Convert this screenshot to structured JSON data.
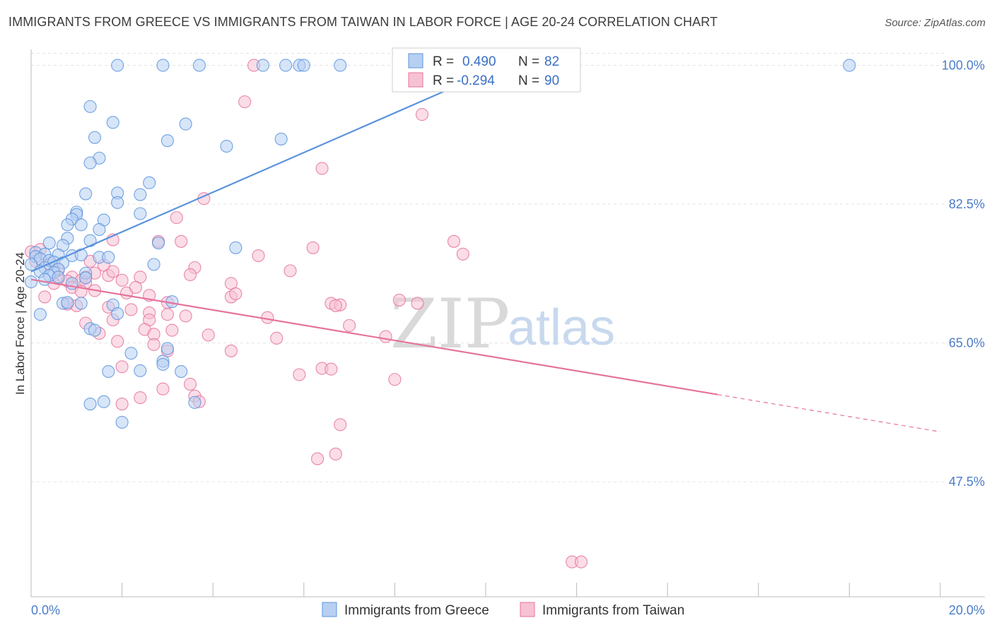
{
  "title": "IMMIGRANTS FROM GREECE VS IMMIGRANTS FROM TAIWAN IN LABOR FORCE | AGE 20-24 CORRELATION CHART",
  "source": "Source: ZipAtlas.com",
  "watermark": {
    "zip": "ZIP",
    "atlas": "atlas"
  },
  "chart_data": {
    "type": "scatter",
    "title": "IMMIGRANTS FROM GREECE VS IMMIGRANTS FROM TAIWAN IN LABOR FORCE | AGE 20-24 CORRELATION CHART",
    "ylabel": "In Labor Force | Age 20-24",
    "xlim": [
      0,
      20
    ],
    "ylim": [
      33,
      102
    ],
    "x_tick_labels": [
      {
        "value": 0,
        "label": "0.0%"
      },
      {
        "value": 20,
        "label": "20.0%"
      }
    ],
    "y_ticks": [
      {
        "value": 100,
        "label": "100.0%"
      },
      {
        "value": 82.5,
        "label": "82.5%"
      },
      {
        "value": 65,
        "label": "65.0%"
      },
      {
        "value": 47.5,
        "label": "47.5%"
      }
    ],
    "grid": true,
    "legend_position": "top-center",
    "series": [
      {
        "name": "Immigrants from Greece",
        "color": "#5b93dd",
        "fill": "#b7d0f2",
        "R": "0.490",
        "N": "82",
        "trend": {
          "x0": 0.0,
          "y0": 74.0,
          "x1": 10.0,
          "y1": 99.0
        },
        "points": [
          [
            1.9,
            100
          ],
          [
            2.9,
            100
          ],
          [
            3.7,
            100
          ],
          [
            5.1,
            100
          ],
          [
            5.6,
            100
          ],
          [
            5.9,
            100
          ],
          [
            6.0,
            100
          ],
          [
            6.8,
            100
          ],
          [
            18.0,
            100
          ],
          [
            1.3,
            94.8
          ],
          [
            1.8,
            92.8
          ],
          [
            3.4,
            92.6
          ],
          [
            1.4,
            90.9
          ],
          [
            3.0,
            90.5
          ],
          [
            4.3,
            89.8
          ],
          [
            5.5,
            90.7
          ],
          [
            1.5,
            88.3
          ],
          [
            1.3,
            87.7
          ],
          [
            2.6,
            85.2
          ],
          [
            1.2,
            83.8
          ],
          [
            1.9,
            83.9
          ],
          [
            2.4,
            83.7
          ],
          [
            1.9,
            82.7
          ],
          [
            1.0,
            81.5
          ],
          [
            1.0,
            81.2
          ],
          [
            0.9,
            80.6
          ],
          [
            2.4,
            81.3
          ],
          [
            1.6,
            80.5
          ],
          [
            0.8,
            79.9
          ],
          [
            1.1,
            79.9
          ],
          [
            1.5,
            79.3
          ],
          [
            0.8,
            78.2
          ],
          [
            1.3,
            77.9
          ],
          [
            0.4,
            77.6
          ],
          [
            0.7,
            77.3
          ],
          [
            2.8,
            77.6
          ],
          [
            4.5,
            77.0
          ],
          [
            0.1,
            76.4
          ],
          [
            0.3,
            76.2
          ],
          [
            0.6,
            76.1
          ],
          [
            0.9,
            76.0
          ],
          [
            1.1,
            76.1
          ],
          [
            1.5,
            75.8
          ],
          [
            1.7,
            75.8
          ],
          [
            0.1,
            75.9
          ],
          [
            0.2,
            75.6
          ],
          [
            0.4,
            75.4
          ],
          [
            0.5,
            75.2
          ],
          [
            0.7,
            75.1
          ],
          [
            0.0,
            74.9
          ],
          [
            2.7,
            74.9
          ],
          [
            0.3,
            74.5
          ],
          [
            0.6,
            74.3
          ],
          [
            0.2,
            74.0
          ],
          [
            0.5,
            73.9
          ],
          [
            1.2,
            73.8
          ],
          [
            0.4,
            73.5
          ],
          [
            0.6,
            73.3
          ],
          [
            0.3,
            73.0
          ],
          [
            1.2,
            73.2
          ],
          [
            0.9,
            72.5
          ],
          [
            3.1,
            70.2
          ],
          [
            0.7,
            70.0
          ],
          [
            0.8,
            70.1
          ],
          [
            1.1,
            70.0
          ],
          [
            1.8,
            69.8
          ],
          [
            0.2,
            68.6
          ],
          [
            1.9,
            68.7
          ],
          [
            1.3,
            66.8
          ],
          [
            1.4,
            66.6
          ],
          [
            3.0,
            64.3
          ],
          [
            2.2,
            63.7
          ],
          [
            2.9,
            62.7
          ],
          [
            2.9,
            62.3
          ],
          [
            1.7,
            61.4
          ],
          [
            2.4,
            61.5
          ],
          [
            3.3,
            61.4
          ],
          [
            1.6,
            57.6
          ],
          [
            1.3,
            57.3
          ],
          [
            3.6,
            57.5
          ],
          [
            2.0,
            55.0
          ],
          [
            0.0,
            72.7
          ]
        ]
      },
      {
        "name": "Immigrants from Taiwan",
        "color": "#e5739d",
        "fill": "#f7c1d4",
        "R": "-0.294",
        "N": "90",
        "trend": {
          "x0": 0.0,
          "y0": 73.0,
          "x1": 15.1,
          "y1": 58.5
        },
        "trend_dashed": {
          "x0": 15.1,
          "y0": 58.5,
          "x1": 20.0,
          "y1": 53.8
        },
        "points": [
          [
            4.9,
            100
          ],
          [
            4.7,
            95.4
          ],
          [
            8.6,
            93.8
          ],
          [
            6.4,
            87.0
          ],
          [
            3.8,
            83.2
          ],
          [
            3.2,
            80.8
          ],
          [
            2.8,
            77.8
          ],
          [
            3.3,
            77.8
          ],
          [
            6.2,
            77.0
          ],
          [
            9.3,
            77.8
          ],
          [
            9.5,
            76.2
          ],
          [
            5.0,
            76.0
          ],
          [
            1.8,
            78.0
          ],
          [
            0.0,
            76.5
          ],
          [
            0.1,
            75.3
          ],
          [
            0.4,
            75.0
          ],
          [
            1.3,
            75.3
          ],
          [
            1.6,
            74.8
          ],
          [
            3.6,
            74.5
          ],
          [
            1.4,
            73.8
          ],
          [
            1.7,
            73.5
          ],
          [
            1.2,
            73.3
          ],
          [
            3.5,
            73.6
          ],
          [
            2.4,
            73.3
          ],
          [
            0.9,
            73.3
          ],
          [
            0.6,
            73.1
          ],
          [
            0.8,
            72.8
          ],
          [
            1.1,
            72.9
          ],
          [
            0.5,
            72.5
          ],
          [
            1.2,
            72.6
          ],
          [
            2.0,
            72.9
          ],
          [
            4.4,
            72.5
          ],
          [
            0.9,
            72.0
          ],
          [
            1.1,
            71.5
          ],
          [
            2.1,
            71.3
          ],
          [
            0.3,
            70.8
          ],
          [
            2.6,
            71.0
          ],
          [
            4.4,
            70.8
          ],
          [
            3.0,
            70.1
          ],
          [
            0.8,
            69.9
          ],
          [
            1.0,
            69.7
          ],
          [
            1.7,
            69.5
          ],
          [
            2.2,
            69.2
          ],
          [
            2.6,
            68.8
          ],
          [
            3.0,
            68.6
          ],
          [
            3.4,
            68.4
          ],
          [
            8.1,
            70.4
          ],
          [
            8.5,
            70.0
          ],
          [
            6.6,
            70.0
          ],
          [
            6.8,
            69.8
          ],
          [
            6.7,
            69.7
          ],
          [
            5.2,
            68.2
          ],
          [
            2.6,
            67.9
          ],
          [
            1.8,
            67.9
          ],
          [
            1.2,
            67.5
          ],
          [
            7.0,
            67.2
          ],
          [
            3.1,
            66.6
          ],
          [
            2.5,
            66.7
          ],
          [
            1.5,
            66.2
          ],
          [
            2.7,
            66.1
          ],
          [
            3.9,
            66.0
          ],
          [
            5.4,
            65.6
          ],
          [
            7.8,
            65.8
          ],
          [
            1.9,
            65.2
          ],
          [
            2.7,
            64.8
          ],
          [
            3.0,
            64.0
          ],
          [
            4.4,
            64.0
          ],
          [
            2.0,
            62.0
          ],
          [
            6.4,
            61.8
          ],
          [
            6.6,
            61.7
          ],
          [
            5.9,
            61.0
          ],
          [
            8.0,
            60.4
          ],
          [
            3.5,
            59.8
          ],
          [
            2.9,
            59.2
          ],
          [
            3.6,
            58.3
          ],
          [
            2.4,
            58.1
          ],
          [
            2.0,
            57.3
          ],
          [
            3.7,
            57.6
          ],
          [
            6.8,
            54.7
          ],
          [
            6.7,
            51.0
          ],
          [
            6.3,
            50.4
          ],
          [
            11.9,
            37.4
          ],
          [
            12.1,
            37.4
          ],
          [
            0.2,
            76.8
          ],
          [
            0.6,
            74.2
          ],
          [
            1.8,
            74.0
          ],
          [
            2.3,
            72.0
          ],
          [
            5.7,
            74.1
          ],
          [
            1.4,
            71.6
          ],
          [
            4.5,
            71.2
          ]
        ]
      }
    ]
  },
  "legend": {
    "r_label": "R =",
    "n_label": "N ="
  }
}
